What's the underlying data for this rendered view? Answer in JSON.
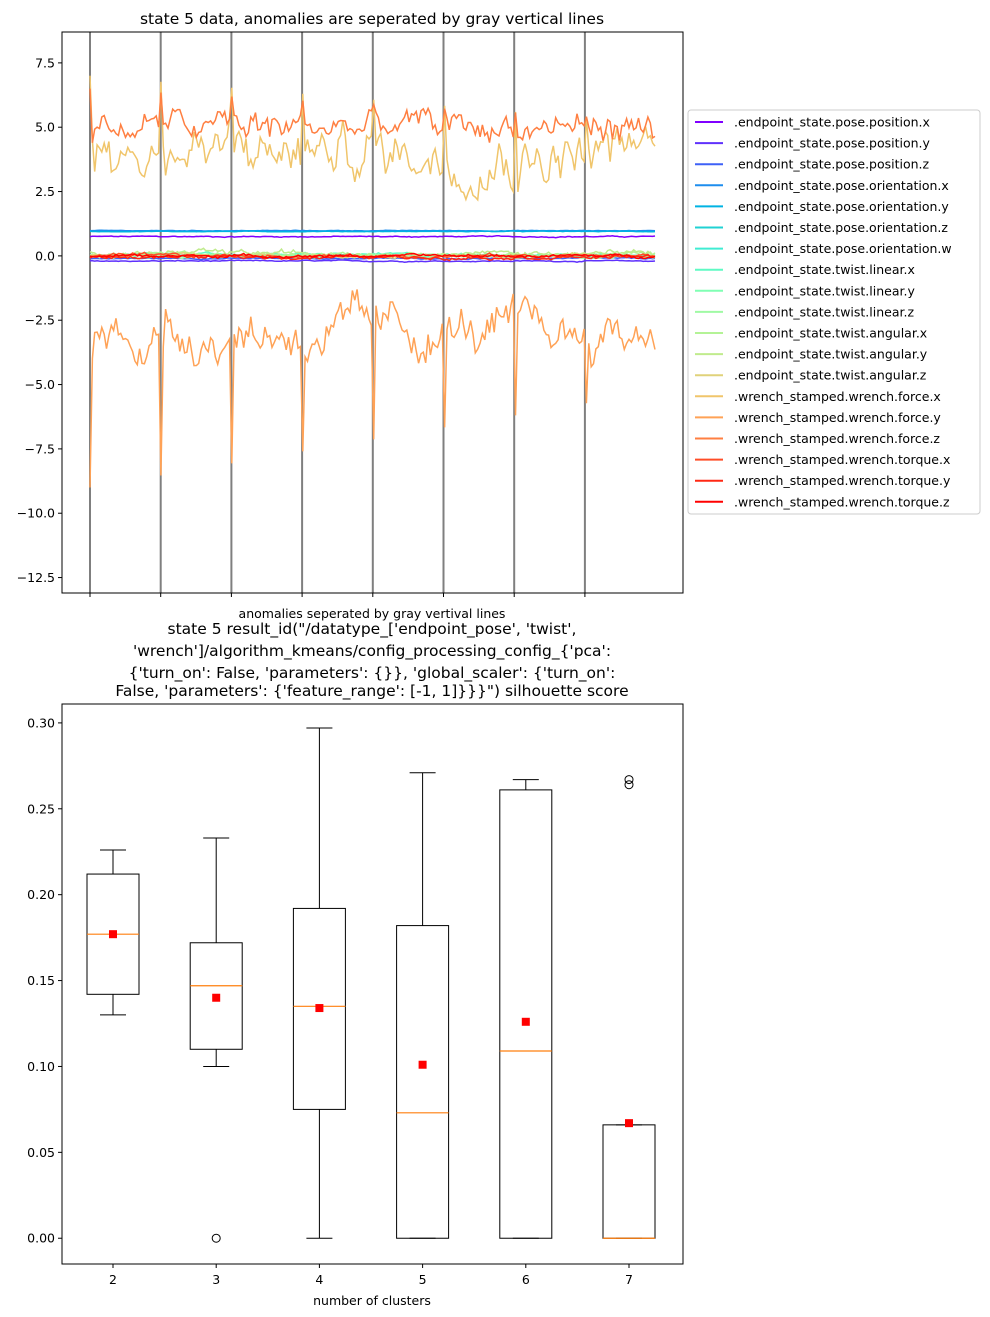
{
  "chart_data": [
    {
      "type": "line",
      "title": "state 5 data, anomalies are seperated by gray vertical lines",
      "xlabel": "anomalies seperated by gray vertival lines",
      "ylabel": "",
      "ylim": [
        -13.1,
        8.7
      ],
      "y_ticks": [
        "7.5",
        "5.0",
        "2.5",
        "0.0",
        "−2.5",
        "−5.0",
        "−7.5",
        "−10.0",
        "−12.5"
      ],
      "y_tick_values": [
        7.5,
        5.0,
        2.5,
        0.0,
        -2.5,
        -5.0,
        -7.5,
        -10.0,
        -12.5
      ],
      "samples": 240,
      "anomaly_markers": 8,
      "legend_position": "center-right (outside axes)",
      "grid": false,
      "series": [
        {
          "name": ".endpoint_state.pose.position.x",
          "color": "#8000ff",
          "level": 0.75,
          "noise": 0.02
        },
        {
          "name": ".endpoint_state.pose.position.y",
          "color": "#5f31fc",
          "level": -0.2,
          "noise": 0.02
        },
        {
          "name": ".endpoint_state.pose.position.z",
          "color": "#3e61f7",
          "level": -0.1,
          "noise": 0.02
        },
        {
          "name": ".endpoint_state.pose.orientation.x",
          "color": "#1e8dee",
          "level": 0.98,
          "noise": 0.01
        },
        {
          "name": ".endpoint_state.pose.orientation.y",
          "color": "#00b3e3",
          "level": 0.95,
          "noise": 0.01
        },
        {
          "name": ".endpoint_state.pose.orientation.z",
          "color": "#20d2d3",
          "level": 0.0,
          "noise": 0.02
        },
        {
          "name": ".endpoint_state.pose.orientation.w",
          "color": "#40ecd3",
          "level": 0.02,
          "noise": 0.02
        },
        {
          "name": ".endpoint_state.twist.linear.x",
          "color": "#5ffac4",
          "level": 0.05,
          "noise": 0.05
        },
        {
          "name": ".endpoint_state.twist.linear.y",
          "color": "#80ffb4",
          "level": 0.0,
          "noise": 0.05
        },
        {
          "name": ".endpoint_state.twist.linear.z",
          "color": "#a0faa4",
          "level": 0.0,
          "noise": 0.06
        },
        {
          "name": ".endpoint_state.twist.angular.x",
          "color": "#b4f396",
          "level": 0.05,
          "noise": 0.08
        },
        {
          "name": ".endpoint_state.twist.angular.y",
          "color": "#c0eb8d",
          "level": 0.1,
          "noise": 0.1
        },
        {
          "name": ".endpoint_state.twist.angular.z",
          "color": "#e0d27a",
          "level": 0.0,
          "noise": 0.06
        },
        {
          "name": ".wrench_stamped.wrench.force.x",
          "color": "#f0c56b",
          "level": 4.0,
          "noise": 0.9
        },
        {
          "name": ".wrench_stamped.wrench.force.y",
          "color": "#ffa256",
          "level": -3.0,
          "noise": 0.8
        },
        {
          "name": ".wrench_stamped.wrench.force.z",
          "color": "#ff7f41",
          "level": 5.0,
          "noise": 0.55
        },
        {
          "name": ".wrench_stamped.wrench.torque.x",
          "color": "#ff4d27",
          "level": 0.0,
          "noise": 0.06
        },
        {
          "name": ".wrench_stamped.wrench.torque.y",
          "color": "#ff2814",
          "level": -0.05,
          "noise": 0.06
        },
        {
          "name": ".wrench_stamped.wrench.torque.z",
          "color": "#ff0000",
          "level": 0.0,
          "noise": 0.05
        }
      ]
    },
    {
      "type": "box",
      "title_lines": [
        "state 5 result_id(\"/datatype_['endpoint_pose', 'twist',",
        "'wrench']/algorithm_kmeans/config_processing_config_{'pca':",
        "{'turn_on': False, 'parameters': {}}, 'global_scaler': {'turn_on':",
        "False, 'parameters': {'feature_range': [-1, 1]}}}\") silhouette score"
      ],
      "xlabel": "number of clusters",
      "ylabel": "",
      "ylim": [
        -0.015,
        0.311
      ],
      "y_ticks": [
        "0.00",
        "0.05",
        "0.10",
        "0.15",
        "0.20",
        "0.25",
        "0.30"
      ],
      "y_tick_values": [
        0.0,
        0.05,
        0.1,
        0.15,
        0.2,
        0.25,
        0.3
      ],
      "categories": [
        "2",
        "3",
        "4",
        "5",
        "6",
        "7"
      ],
      "boxes": [
        {
          "whisker_low": 0.13,
          "q1": 0.142,
          "median": 0.177,
          "q3": 0.212,
          "whisker_high": 0.226,
          "mean": 0.177,
          "outliers": []
        },
        {
          "whisker_low": 0.1,
          "q1": 0.11,
          "median": 0.147,
          "q3": 0.172,
          "whisker_high": 0.233,
          "mean": 0.14,
          "outliers": [
            0.0
          ]
        },
        {
          "whisker_low": 0.0,
          "q1": 0.075,
          "median": 0.135,
          "q3": 0.192,
          "whisker_high": 0.297,
          "mean": 0.134,
          "outliers": []
        },
        {
          "whisker_low": 0.0,
          "q1": 0.0,
          "median": 0.073,
          "q3": 0.182,
          "whisker_high": 0.271,
          "mean": 0.101,
          "outliers": []
        },
        {
          "whisker_low": 0.0,
          "q1": 0.0,
          "median": 0.109,
          "q3": 0.261,
          "whisker_high": 0.267,
          "mean": 0.126,
          "outliers": []
        },
        {
          "whisker_low": 0.0,
          "q1": 0.0,
          "median": 0.0,
          "q3": 0.066,
          "whisker_high": 0.066,
          "mean": 0.067,
          "outliers": [
            0.264,
            0.267
          ]
        }
      ],
      "colors": {
        "box": "#000000",
        "median": "#ff7f0e",
        "mean": "#ff0000"
      }
    }
  ]
}
